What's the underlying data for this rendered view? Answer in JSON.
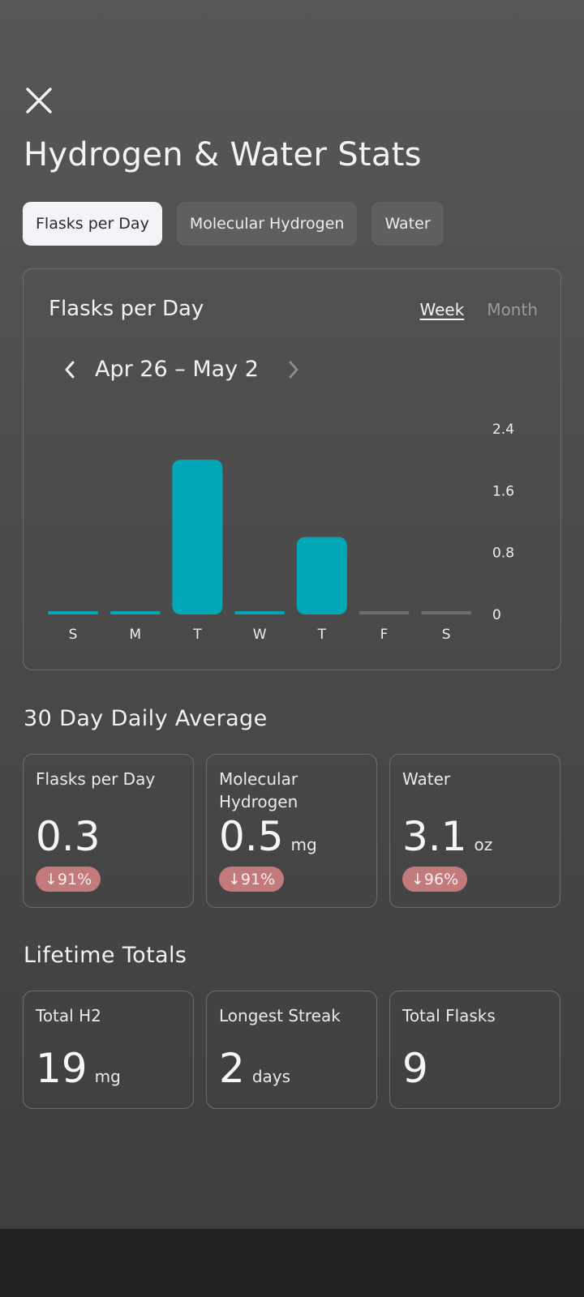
{
  "header": {
    "close_icon": "close-icon",
    "title": "Hydrogen & Water Stats"
  },
  "tabs": [
    {
      "label": "Flasks per Day",
      "active": true
    },
    {
      "label": "Molecular Hydrogen",
      "active": false
    },
    {
      "label": "Water",
      "active": false
    }
  ],
  "chart_card": {
    "title": "Flasks per Day",
    "range_options": {
      "week": "Week",
      "month": "Month",
      "selected": "Week"
    },
    "date_range": "Apr 26 – May 2",
    "prev_icon": "chevron-left-icon",
    "next_icon": "chevron-right-icon"
  },
  "chart_data": {
    "type": "bar",
    "categories": [
      "S",
      "M",
      "T",
      "W",
      "T",
      "F",
      "S"
    ],
    "values": [
      0,
      0,
      2,
      0,
      1,
      0,
      0
    ],
    "has_data": [
      true,
      true,
      true,
      true,
      true,
      false,
      false
    ],
    "yticks": [
      "2.4",
      "1.6",
      "0.8",
      "0"
    ],
    "ylim": [
      0,
      2.4
    ],
    "bar_color": "#00a8b8",
    "empty_color": "#6e6e6e",
    "y_axis_position": "right"
  },
  "averages": {
    "title": "30 Day Daily Average",
    "cards": [
      {
        "label": "Flasks per Day",
        "value": "0.3",
        "unit": "",
        "change": "↓91%"
      },
      {
        "label": "Molecular Hydrogen",
        "value": "0.5",
        "unit": "mg",
        "change": "↓91%"
      },
      {
        "label": "Water",
        "value": "3.1",
        "unit": "oz",
        "change": "↓96%"
      }
    ]
  },
  "lifetime": {
    "title": "Lifetime Totals",
    "cards": [
      {
        "label": "Total H2",
        "value": "19",
        "unit": "mg"
      },
      {
        "label": "Longest Streak",
        "value": "2",
        "unit": "days"
      },
      {
        "label": "Total Flasks",
        "value": "9",
        "unit": ""
      }
    ]
  },
  "colors": {
    "accent": "#00a8b8",
    "badge_negative": "#c27a7a",
    "tab_active_bg": "#f2f4f7",
    "tab_inactive_bg": "#5f5f5f"
  }
}
